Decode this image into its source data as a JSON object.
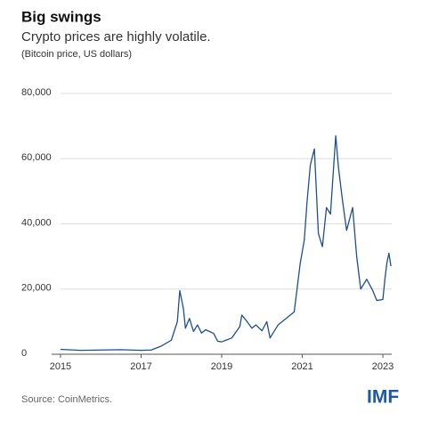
{
  "chart_data": {
    "type": "line",
    "title": "Big swings",
    "subtitle": "Crypto prices are highly volatile.",
    "note": "(Bitcoin price, US dollars)",
    "source": "Source: CoinMetrics.",
    "logo": "IMF",
    "color": "#1f4f8f",
    "grid": true,
    "xlim": [
      2014.78,
      2023.22
    ],
    "xticks": [
      2015,
      2017,
      2019,
      2021,
      2023
    ],
    "ylim": [
      0,
      80000
    ],
    "yticks": [
      0,
      {
        "value": 20000,
        "label": "20,000"
      },
      {
        "value": 40000,
        "label": "40,000"
      },
      {
        "value": 60000,
        "label": "60,000"
      },
      {
        "value": 80000,
        "label": "80,000"
      }
    ],
    "x": [
      2015.0,
      2015.5,
      2016.0,
      2016.5,
      2017.0,
      2017.25,
      2017.5,
      2017.75,
      2017.9,
      2017.96,
      2018.05,
      2018.1,
      2018.2,
      2018.3,
      2018.4,
      2018.5,
      2018.6,
      2018.8,
      2018.9,
      2019.0,
      2019.25,
      2019.45,
      2019.5,
      2019.6,
      2019.75,
      2019.85,
      2020.0,
      2020.12,
      2020.2,
      2020.4,
      2020.6,
      2020.8,
      2020.95,
      2021.05,
      2021.12,
      2021.2,
      2021.3,
      2021.4,
      2021.5,
      2021.6,
      2021.7,
      2021.83,
      2021.9,
      2022.0,
      2022.1,
      2022.25,
      2022.35,
      2022.45,
      2022.6,
      2022.75,
      2022.85,
      2023.0,
      2023.05,
      2023.1,
      2023.15,
      2023.2
    ],
    "values": [
      1500,
      1200,
      1300,
      1400,
      1200,
      1300,
      2500,
      4300,
      10000,
      19500,
      14000,
      8000,
      11000,
      7000,
      9000,
      6500,
      7500,
      6400,
      4000,
      3800,
      5000,
      8500,
      12000,
      10500,
      8000,
      9000,
      7200,
      10000,
      5000,
      9000,
      11000,
      13000,
      28000,
      35000,
      47000,
      58000,
      63000,
      37000,
      33000,
      45000,
      43000,
      67000,
      57000,
      47000,
      38000,
      45000,
      30000,
      20000,
      23000,
      19500,
      16500,
      16800,
      23000,
      28000,
      31000,
      27000
    ]
  }
}
